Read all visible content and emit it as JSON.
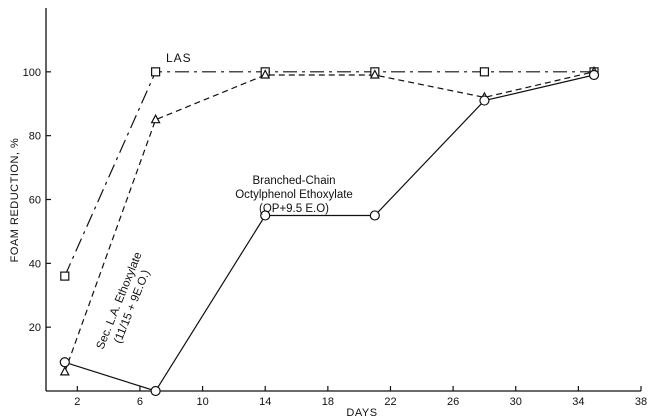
{
  "chart_data": {
    "type": "line",
    "title": "",
    "xlabel": "DAYS",
    "ylabel": "FOAM REDUCTION, %",
    "xlim": [
      0,
      38
    ],
    "ylim": [
      0,
      120
    ],
    "x_ticks": [
      2,
      6,
      10,
      14,
      18,
      22,
      26,
      30,
      34,
      38
    ],
    "y_ticks": [
      20,
      40,
      60,
      80,
      100
    ],
    "grid": false,
    "legend": "none",
    "series": [
      {
        "name": "LAS",
        "marker": "square",
        "line_style": "long-dash",
        "x": [
          1.2,
          7,
          14,
          21,
          28,
          35
        ],
        "y": [
          36,
          100,
          100,
          100,
          100,
          100
        ]
      },
      {
        "name": "Sec. L.A. Ethoxylate (11/15 + 9E.O.)",
        "marker": "triangle",
        "line_style": "short-dash",
        "x": [
          1.2,
          7,
          14,
          21,
          28,
          35
        ],
        "y": [
          6,
          85,
          99,
          99,
          92,
          100
        ]
      },
      {
        "name": "Branched-Chain Octylphenol Ethoxylate (OP+9.5 E.O)",
        "marker": "circle",
        "line_style": "solid",
        "x": [
          1.2,
          7,
          14,
          21,
          28,
          35
        ],
        "y": [
          9,
          0,
          55,
          55,
          91,
          99
        ]
      }
    ],
    "annotations": {
      "las": "LAS",
      "sec_line1": "Sec. L.A. Ethoxylate",
      "sec_line2": "(11/15 + 9E.O.)",
      "op_line1": "Branched-Chain",
      "op_line2": "Octylphenol Ethoxylate",
      "op_line3": "(OP+9.5 E.O)"
    }
  }
}
